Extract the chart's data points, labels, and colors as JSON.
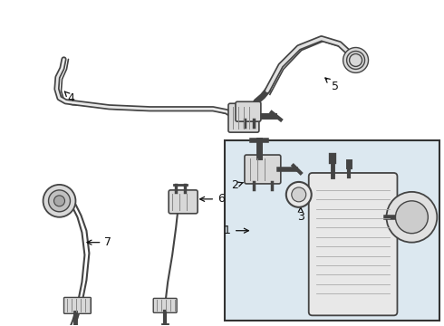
{
  "bg_color": "#ffffff",
  "line_color": "#444444",
  "box_bg": "#dce8f0",
  "box_border": "#333333",
  "label_color": "#111111",
  "font_size_label": 9,
  "fig_bg": "#ffffff"
}
